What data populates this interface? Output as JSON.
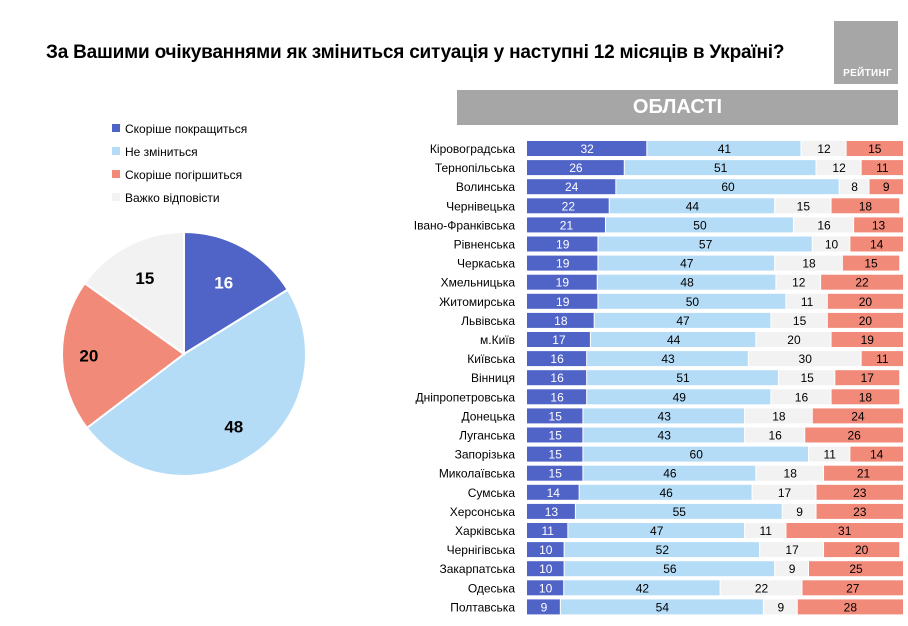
{
  "header": {
    "title": "За Вашими очікуваннями як зміниться ситуація у наступні 12 місяців в Україні?",
    "logo_text": "РЕЙТИНГ",
    "section_title": "ОБЛАСТІ"
  },
  "colors": {
    "improve": "#5064c8",
    "same": "#b5dcf7",
    "worse": "#f28a7a",
    "hard": "#f2f2f2",
    "banner": "#a6a6a6"
  },
  "chart_data": [
    {
      "type": "pie",
      "title": "",
      "categories": [
        "Скоріше покращиться",
        "Не зміниться",
        "Скоріше погіршиться",
        "Важко відповісти"
      ],
      "values": [
        16,
        48,
        20,
        15
      ],
      "legend_position": "top"
    },
    {
      "type": "bar",
      "orientation": "horizontal-stacked",
      "title": "ОБЛАСТІ",
      "categories": [
        "Кіровоградська",
        "Тернопільська",
        "Волинська",
        "Чернівецька",
        "Івано-Франківська",
        "Рівненська",
        "Черкаська",
        "Хмельницька",
        "Житомирська",
        "Львівська",
        "м.Київ",
        "Київська",
        "Вінниця",
        "Дніпропетровська",
        "Донецька",
        "Луганська",
        "Запорізька",
        "Миколаївська",
        "Сумська",
        "Херсонська",
        "Харківська",
        "Чернігівська",
        "Закарпатська",
        "Одеська",
        "Полтавська"
      ],
      "series": [
        {
          "name": "Скоріше покращиться",
          "values": [
            32,
            26,
            24,
            22,
            21,
            19,
            19,
            19,
            19,
            18,
            17,
            16,
            16,
            16,
            15,
            15,
            15,
            15,
            14,
            13,
            11,
            10,
            10,
            10,
            9
          ]
        },
        {
          "name": "Не зміниться",
          "values": [
            41,
            51,
            60,
            44,
            50,
            57,
            47,
            48,
            50,
            47,
            44,
            43,
            51,
            49,
            43,
            43,
            60,
            46,
            46,
            55,
            47,
            52,
            56,
            42,
            54
          ]
        },
        {
          "name": "Важко відповісти",
          "values": [
            12,
            12,
            8,
            15,
            16,
            10,
            18,
            12,
            11,
            15,
            20,
            30,
            15,
            16,
            18,
            16,
            11,
            18,
            17,
            9,
            11,
            17,
            9,
            22,
            9
          ]
        },
        {
          "name": "Скоріше погіршиться",
          "values": [
            15,
            11,
            9,
            18,
            13,
            14,
            15,
            22,
            20,
            20,
            19,
            11,
            17,
            18,
            24,
            26,
            14,
            21,
            23,
            23,
            31,
            20,
            25,
            27,
            28
          ]
        }
      ]
    }
  ]
}
